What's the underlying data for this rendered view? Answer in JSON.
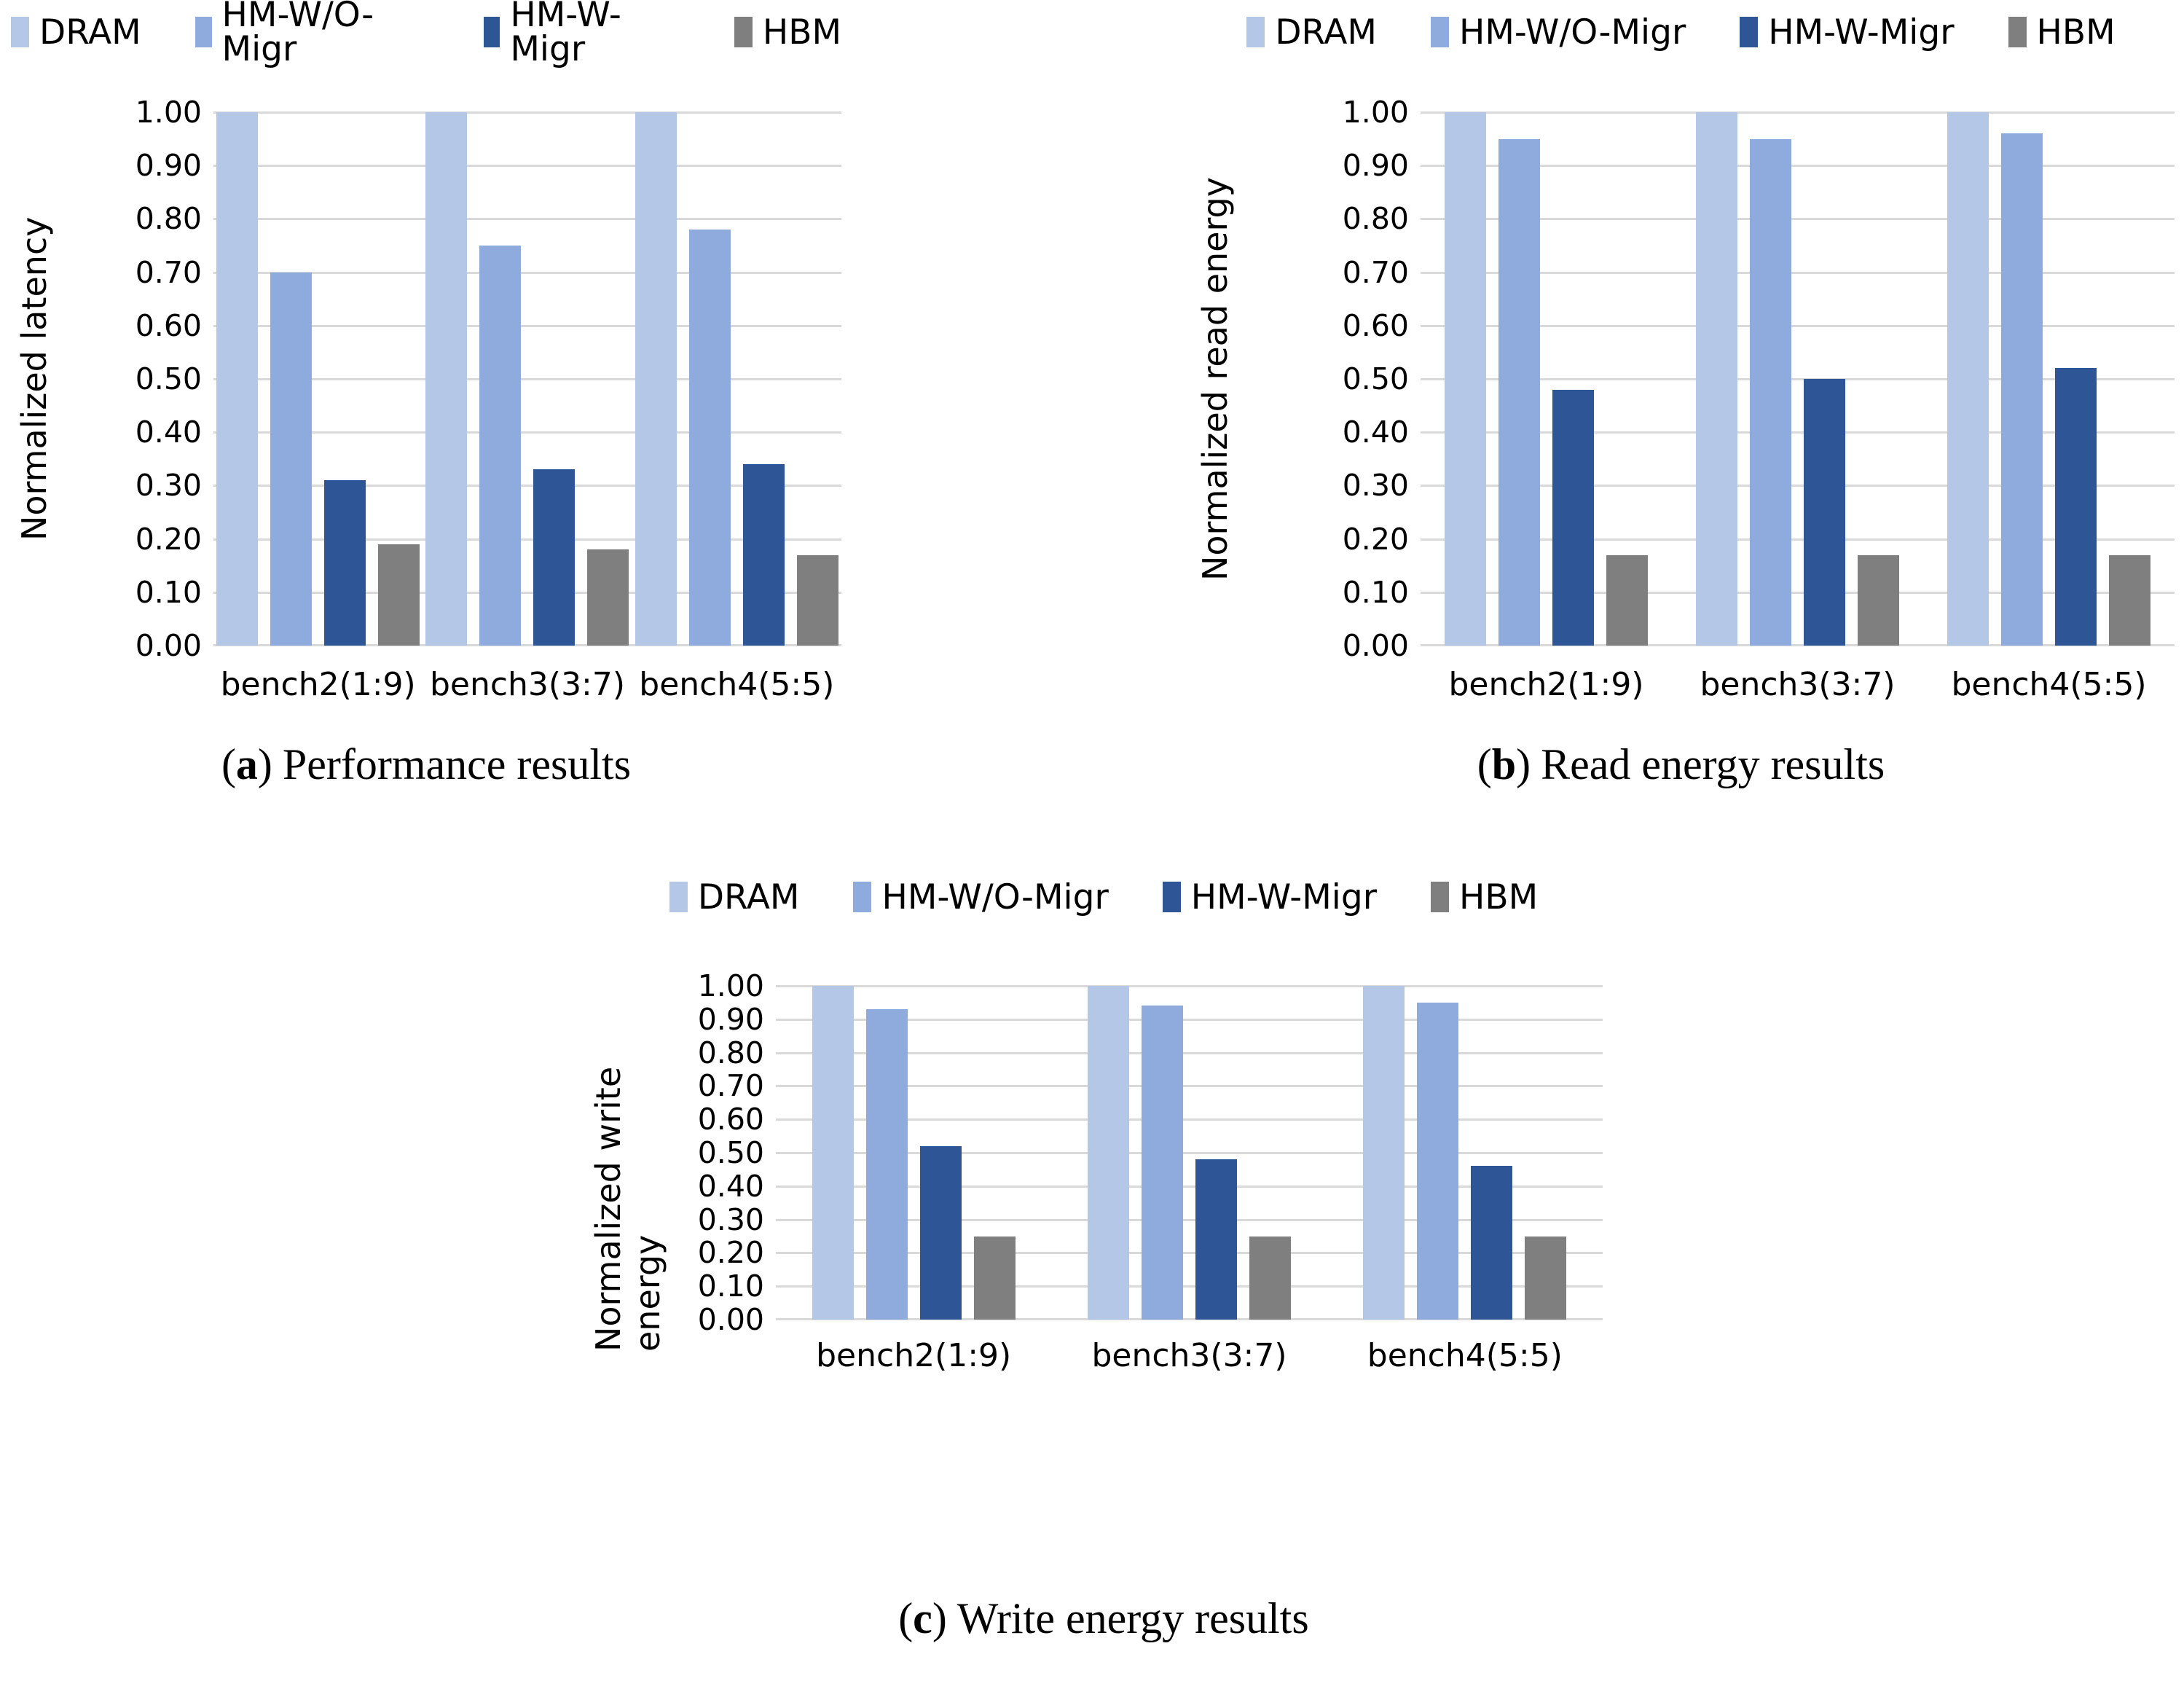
{
  "figure": {
    "background": "#ffffff"
  },
  "colors": {
    "dram": "#b4c7e7",
    "hm_wo_migr": "#8faadc",
    "hm_w_migr": "#2e5697",
    "hbm": "#7f7f7f",
    "gridline": "#d9d9d9"
  },
  "legend_labels": [
    "DRAM",
    "HM-W/O-Migr",
    "HM-W-Migr",
    "HBM"
  ],
  "chart_data": [
    {
      "type": "bar",
      "panel": "a",
      "caption_label": "a",
      "caption_text": "Performance results",
      "ylabel": "Normalized latency",
      "categories": [
        "bench2(1:9)",
        "bench3(3:7)",
        "bench4(5:5)"
      ],
      "series": [
        {
          "name": "DRAM",
          "color": "#b4c7e7",
          "values": [
            1.0,
            1.0,
            1.0
          ]
        },
        {
          "name": "HM-W/O-Migr",
          "color": "#8faadc",
          "values": [
            0.7,
            0.75,
            0.78
          ]
        },
        {
          "name": "HM-W-Migr",
          "color": "#2e5697",
          "values": [
            0.31,
            0.33,
            0.34
          ]
        },
        {
          "name": "HBM",
          "color": "#7f7f7f",
          "values": [
            0.19,
            0.18,
            0.17
          ]
        }
      ],
      "ylim": [
        0,
        1.0
      ],
      "ytick_step": 0.1,
      "ytick_labels": [
        "0.00",
        "0.10",
        "0.20",
        "0.30",
        "0.40",
        "0.50",
        "0.60",
        "0.70",
        "0.80",
        "0.90",
        "1.00"
      ],
      "grid": true,
      "legend_position": "top"
    },
    {
      "type": "bar",
      "panel": "b",
      "caption_label": "b",
      "caption_text": "Read energy results",
      "ylabel": "Normalized read energy",
      "categories": [
        "bench2(1:9)",
        "bench3(3:7)",
        "bench4(5:5)"
      ],
      "series": [
        {
          "name": "DRAM",
          "color": "#b4c7e7",
          "values": [
            1.0,
            1.0,
            1.0
          ]
        },
        {
          "name": "HM-W/O-Migr",
          "color": "#8faadc",
          "values": [
            0.95,
            0.95,
            0.96
          ]
        },
        {
          "name": "HM-W-Migr",
          "color": "#2e5697",
          "values": [
            0.48,
            0.5,
            0.52
          ]
        },
        {
          "name": "HBM",
          "color": "#7f7f7f",
          "values": [
            0.17,
            0.17,
            0.17
          ]
        }
      ],
      "ylim": [
        0,
        1.0
      ],
      "ytick_step": 0.1,
      "ytick_labels": [
        "0.00",
        "0.10",
        "0.20",
        "0.30",
        "0.40",
        "0.50",
        "0.60",
        "0.70",
        "0.80",
        "0.90",
        "1.00"
      ],
      "grid": true,
      "legend_position": "top"
    },
    {
      "type": "bar",
      "panel": "c",
      "caption_label": "c",
      "caption_text": "Write energy results",
      "ylabel": "Normalized write energy",
      "categories": [
        "bench2(1:9)",
        "bench3(3:7)",
        "bench4(5:5)"
      ],
      "series": [
        {
          "name": "DRAM",
          "color": "#b4c7e7",
          "values": [
            1.0,
            1.0,
            1.0
          ]
        },
        {
          "name": "HM-W/O-Migr",
          "color": "#8faadc",
          "values": [
            0.93,
            0.94,
            0.95
          ]
        },
        {
          "name": "HM-W-Migr",
          "color": "#2e5697",
          "values": [
            0.52,
            0.48,
            0.46
          ]
        },
        {
          "name": "HBM",
          "color": "#7f7f7f",
          "values": [
            0.25,
            0.25,
            0.25
          ]
        }
      ],
      "ylim": [
        0,
        1.0
      ],
      "ytick_step": 0.1,
      "ytick_labels": [
        "0.00",
        "0.10",
        "0.20",
        "0.30",
        "0.40",
        "0.50",
        "0.60",
        "0.70",
        "0.80",
        "0.90",
        "1.00"
      ],
      "grid": true,
      "legend_position": "top"
    }
  ]
}
